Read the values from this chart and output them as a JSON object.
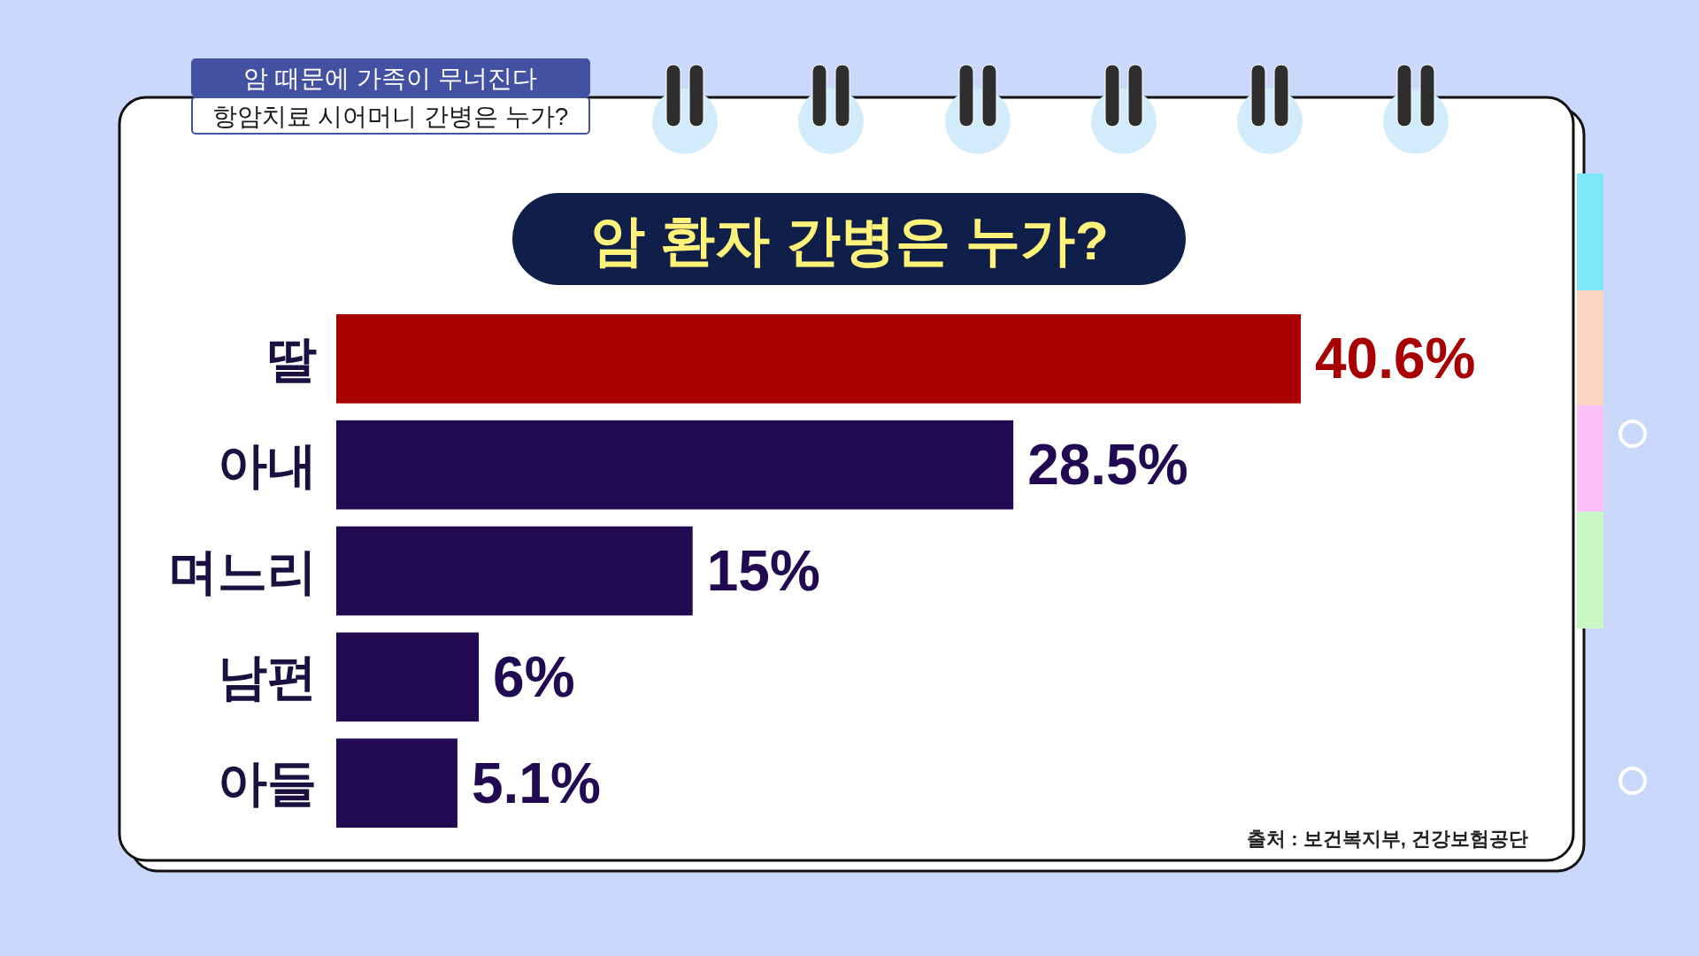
{
  "chart_data": {
    "type": "bar",
    "orientation": "horizontal",
    "title": "암 환자 간병은 누가?",
    "categories": [
      "딸",
      "아내",
      "며느리",
      "남편",
      "아들"
    ],
    "values": [
      40.6,
      28.5,
      15,
      6,
      5.1
    ],
    "value_labels": [
      "40.6%",
      "28.5%",
      "15%",
      "6%",
      "5.1%"
    ],
    "colors": [
      "#a80000",
      "#210a52",
      "#210a52",
      "#210a52",
      "#210a52"
    ],
    "annotations": [
      "암 때문에 가족이 무너진다",
      "항암치료 시어머니 간병은 누가?",
      "출처 : 보건복지부, 건강보험공단"
    ]
  }
}
